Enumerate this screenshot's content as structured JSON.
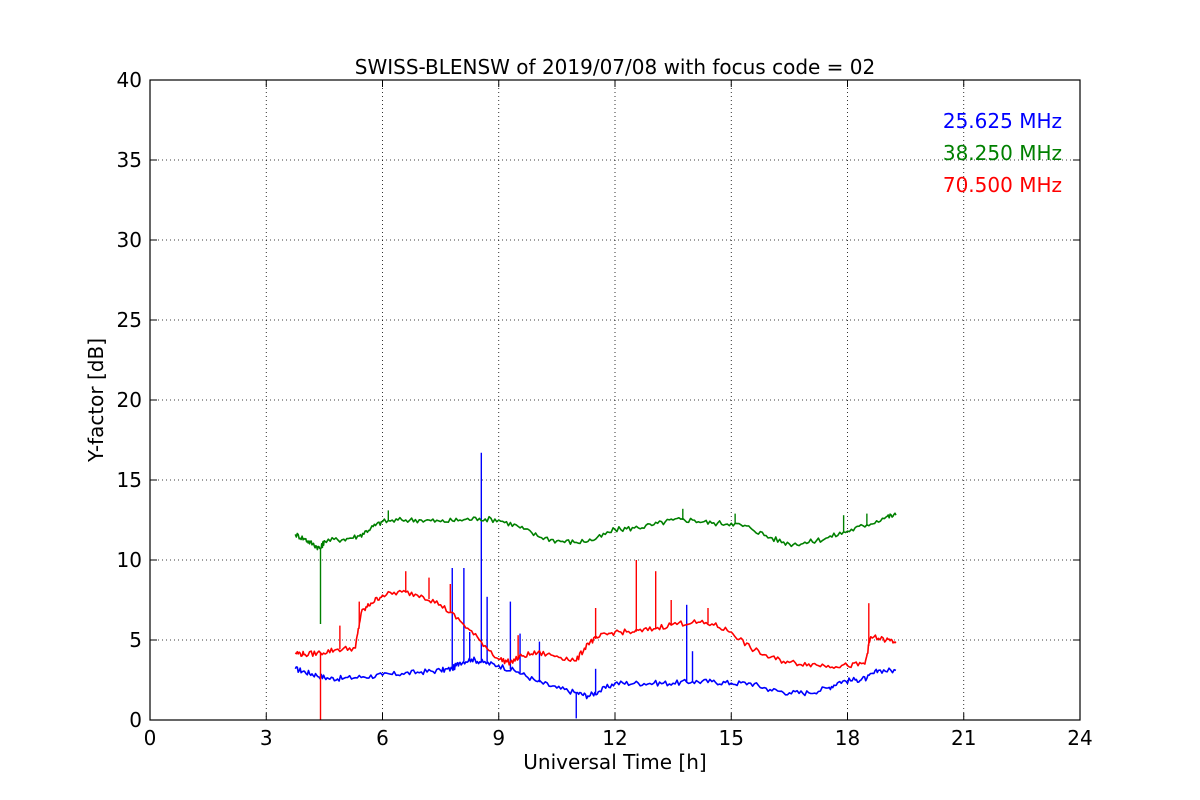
{
  "chart_data": {
    "type": "line",
    "title": "SWISS-BLENSW of 2019/07/08 with focus code = 02",
    "xlabel": "Universal Time [h]",
    "ylabel": "Y-factor [dB]",
    "xlim": [
      0,
      24
    ],
    "ylim": [
      0,
      40
    ],
    "xticks": [
      0,
      3,
      6,
      9,
      12,
      15,
      18,
      21,
      24
    ],
    "yticks": [
      0,
      5,
      10,
      15,
      20,
      25,
      30,
      35,
      40
    ],
    "grid": true,
    "legend_position": "top-right",
    "series": [
      {
        "name": "25.625 MHz",
        "color": "#0000ff",
        "points": [
          [
            3.75,
            3.2
          ],
          [
            4.0,
            3.0
          ],
          [
            4.3,
            2.8
          ],
          [
            4.6,
            2.6
          ],
          [
            5.0,
            2.6
          ],
          [
            5.5,
            2.7
          ],
          [
            6.0,
            2.8
          ],
          [
            6.5,
            2.9
          ],
          [
            7.0,
            3.0
          ],
          [
            7.5,
            3.1
          ],
          [
            7.8,
            3.2
          ],
          [
            8.0,
            3.6
          ],
          [
            8.3,
            3.8
          ],
          [
            8.6,
            3.6
          ],
          [
            9.0,
            3.4
          ],
          [
            9.5,
            3.0
          ],
          [
            10.0,
            2.4
          ],
          [
            10.5,
            2.0
          ],
          [
            11.0,
            1.7
          ],
          [
            11.3,
            1.5
          ],
          [
            11.6,
            1.8
          ],
          [
            12.0,
            2.3
          ],
          [
            12.5,
            2.3
          ],
          [
            13.0,
            2.3
          ],
          [
            13.5,
            2.3
          ],
          [
            14.0,
            2.4
          ],
          [
            14.5,
            2.4
          ],
          [
            15.0,
            2.3
          ],
          [
            15.5,
            2.3
          ],
          [
            16.0,
            1.9
          ],
          [
            16.5,
            1.7
          ],
          [
            17.0,
            1.7
          ],
          [
            17.5,
            2.0
          ],
          [
            17.8,
            2.4
          ],
          [
            18.2,
            2.5
          ],
          [
            18.5,
            2.6
          ],
          [
            18.8,
            3.1
          ],
          [
            19.25,
            3.1
          ]
        ],
        "spikes": [
          [
            7.8,
            9.5
          ],
          [
            8.1,
            9.5
          ],
          [
            8.25,
            5.5
          ],
          [
            8.55,
            16.7
          ],
          [
            8.7,
            7.7
          ],
          [
            9.3,
            7.4
          ],
          [
            9.55,
            5.4
          ],
          [
            10.05,
            4.9
          ],
          [
            11.0,
            0.1
          ],
          [
            11.5,
            3.2
          ],
          [
            13.85,
            7.2
          ],
          [
            14.0,
            4.3
          ]
        ]
      },
      {
        "name": "38.250 MHz",
        "color": "#008000",
        "points": [
          [
            3.75,
            11.6
          ],
          [
            4.0,
            11.3
          ],
          [
            4.2,
            11.0
          ],
          [
            4.4,
            10.7
          ],
          [
            4.5,
            11.2
          ],
          [
            5.0,
            11.3
          ],
          [
            5.4,
            11.5
          ],
          [
            5.7,
            12.0
          ],
          [
            6.0,
            12.4
          ],
          [
            6.5,
            12.5
          ],
          [
            7.0,
            12.5
          ],
          [
            7.5,
            12.4
          ],
          [
            8.0,
            12.5
          ],
          [
            8.5,
            12.6
          ],
          [
            9.0,
            12.5
          ],
          [
            9.5,
            12.1
          ],
          [
            10.0,
            11.5
          ],
          [
            10.5,
            11.2
          ],
          [
            11.0,
            11.1
          ],
          [
            11.5,
            11.3
          ],
          [
            12.0,
            11.9
          ],
          [
            12.5,
            12.0
          ],
          [
            13.0,
            12.2
          ],
          [
            13.5,
            12.5
          ],
          [
            14.0,
            12.5
          ],
          [
            14.5,
            12.3
          ],
          [
            15.0,
            12.3
          ],
          [
            15.5,
            12.0
          ],
          [
            16.0,
            11.4
          ],
          [
            16.5,
            11.0
          ],
          [
            17.0,
            11.1
          ],
          [
            17.5,
            11.4
          ],
          [
            18.0,
            11.8
          ],
          [
            18.5,
            12.2
          ],
          [
            19.0,
            12.7
          ],
          [
            19.25,
            12.8
          ]
        ],
        "spikes": [
          [
            4.4,
            6.0
          ],
          [
            6.15,
            13.1
          ],
          [
            13.75,
            13.2
          ],
          [
            15.1,
            12.9
          ],
          [
            17.9,
            12.8
          ],
          [
            18.5,
            12.9
          ]
        ]
      },
      {
        "name": "70.500 MHz",
        "color": "#ff0000",
        "points": [
          [
            3.75,
            4.2
          ],
          [
            4.0,
            4.1
          ],
          [
            4.4,
            4.2
          ],
          [
            4.8,
            4.4
          ],
          [
            5.3,
            4.5
          ],
          [
            5.45,
            6.7
          ],
          [
            5.7,
            7.3
          ],
          [
            6.0,
            7.8
          ],
          [
            6.5,
            8.0
          ],
          [
            7.0,
            7.8
          ],
          [
            7.5,
            7.2
          ],
          [
            8.0,
            6.2
          ],
          [
            8.5,
            5.0
          ],
          [
            9.0,
            3.8
          ],
          [
            9.3,
            3.6
          ],
          [
            9.6,
            4.0
          ],
          [
            10.0,
            4.2
          ],
          [
            10.5,
            4.0
          ],
          [
            11.0,
            3.7
          ],
          [
            11.3,
            4.8
          ],
          [
            11.6,
            5.2
          ],
          [
            12.0,
            5.5
          ],
          [
            12.5,
            5.5
          ],
          [
            13.0,
            5.7
          ],
          [
            13.5,
            6.0
          ],
          [
            14.0,
            6.1
          ],
          [
            14.5,
            6.0
          ],
          [
            15.0,
            5.5
          ],
          [
            15.5,
            4.5
          ],
          [
            16.0,
            3.9
          ],
          [
            16.5,
            3.6
          ],
          [
            17.0,
            3.5
          ],
          [
            17.5,
            3.4
          ],
          [
            18.0,
            3.4
          ],
          [
            18.45,
            3.5
          ],
          [
            18.6,
            5.2
          ],
          [
            19.0,
            5.0
          ],
          [
            19.25,
            4.9
          ]
        ],
        "spikes": [
          [
            4.4,
            0.0
          ],
          [
            4.9,
            5.9
          ],
          [
            5.4,
            7.4
          ],
          [
            6.6,
            9.3
          ],
          [
            7.2,
            8.9
          ],
          [
            7.75,
            8.5
          ],
          [
            9.5,
            5.3
          ],
          [
            11.5,
            7.0
          ],
          [
            12.55,
            10.0
          ],
          [
            13.05,
            9.3
          ],
          [
            13.45,
            7.5
          ],
          [
            14.4,
            7.0
          ],
          [
            18.55,
            7.3
          ]
        ]
      }
    ]
  }
}
